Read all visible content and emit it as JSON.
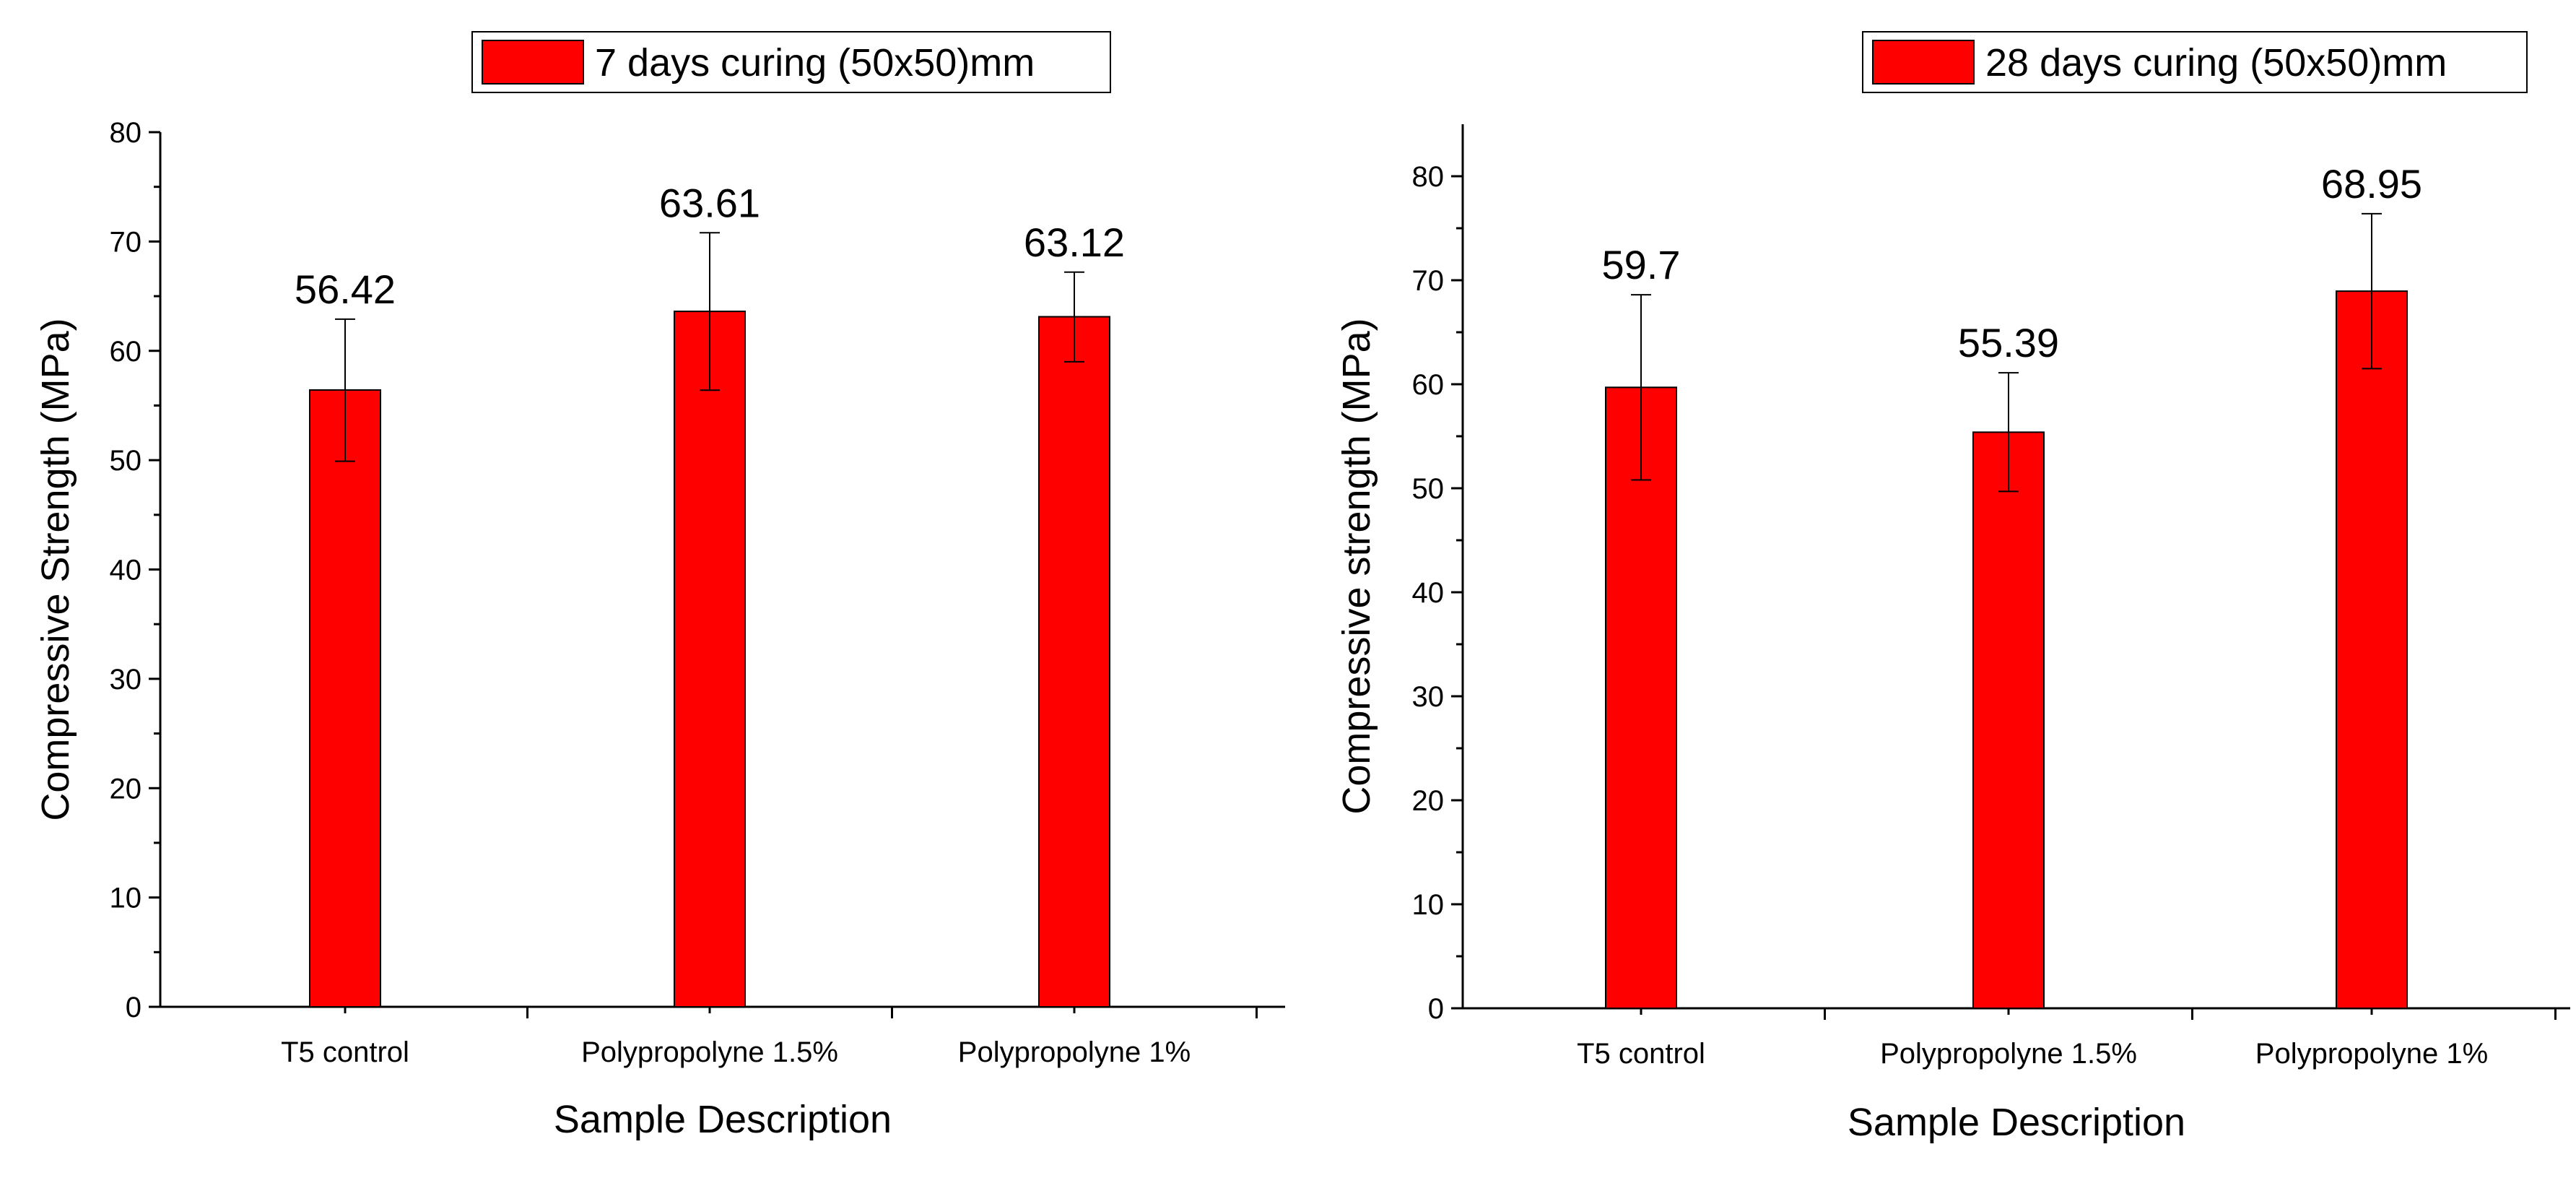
{
  "chart_data": [
    {
      "type": "bar",
      "title": "",
      "legend": "7 days curing (50x50)mm",
      "legend_position": "top",
      "categories": [
        "T5 control",
        "Polypropolyne 1.5%",
        "Polypropolyne 1%"
      ],
      "values": [
        56.42,
        63.61,
        63.12
      ],
      "value_labels": [
        "56.42",
        "63.61",
        "63.12"
      ],
      "error_low": [
        49.9,
        56.4,
        59.0
      ],
      "error_high": [
        62.9,
        70.8,
        67.2
      ],
      "xlabel": "Sample Description",
      "ylabel": "Compressive Strength (MPa)",
      "ylim": [
        0,
        80
      ],
      "ticks": [
        0,
        10,
        20,
        30,
        40,
        50,
        60,
        70,
        80
      ],
      "color": "#ff0000",
      "grid": false
    },
    {
      "type": "bar",
      "title": "",
      "legend": "28 days curing (50x50)mm",
      "legend_position": "top-right",
      "categories": [
        "T5 control",
        "Polypropolyne 1.5%",
        "Polypropolyne 1%"
      ],
      "values": [
        59.7,
        55.39,
        68.95
      ],
      "value_labels": [
        "59.7",
        "55.39",
        "68.95"
      ],
      "error_low": [
        50.8,
        49.7,
        61.5
      ],
      "error_high": [
        68.6,
        61.1,
        76.4
      ],
      "xlabel": "Sample Description",
      "ylabel": "Compressive strength (MPa)",
      "ylim": [
        0,
        85
      ],
      "ticks": [
        0,
        10,
        20,
        30,
        40,
        50,
        60,
        70,
        80
      ],
      "color": "#ff0000",
      "grid": false
    }
  ]
}
